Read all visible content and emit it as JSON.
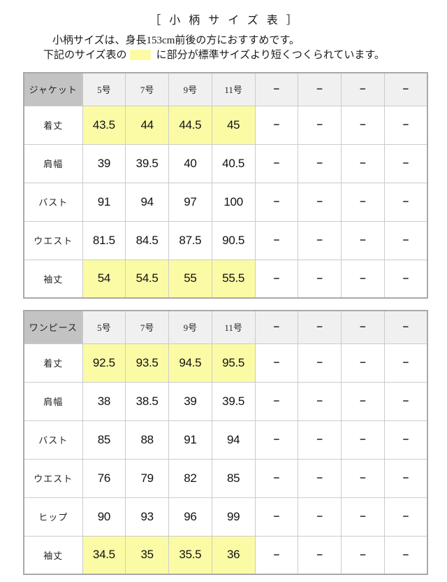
{
  "page": {
    "title": "［小柄サイズ表］",
    "description_line1": "小柄サイズは、身長153cm前後の方におすすめです。",
    "description_line2_prefix": "下記のサイズ表の",
    "description_line2_suffix": "に部分が標準サイズより短くつくられています。"
  },
  "colors": {
    "highlight": "#FBFBA6",
    "header_label_bg": "#C3C3C3",
    "header_size_bg": "#F0F0F0",
    "cell_border": "#CBCBCB",
    "outer_border": "#A9A9A9"
  },
  "dash": "−",
  "tables": [
    {
      "name": "ジャケット",
      "columns": [
        "5号",
        "7号",
        "9号",
        "11号",
        "−",
        "−",
        "−",
        "−"
      ],
      "rows": [
        {
          "label": "着丈",
          "highlight": true,
          "values": [
            "43.5",
            "44",
            "44.5",
            "45",
            "−",
            "−",
            "−",
            "−"
          ]
        },
        {
          "label": "肩幅",
          "highlight": false,
          "values": [
            "39",
            "39.5",
            "40",
            "40.5",
            "−",
            "−",
            "−",
            "−"
          ]
        },
        {
          "label": "バスト",
          "highlight": false,
          "values": [
            "91",
            "94",
            "97",
            "100",
            "−",
            "−",
            "−",
            "−"
          ]
        },
        {
          "label": "ウエスト",
          "highlight": false,
          "values": [
            "81.5",
            "84.5",
            "87.5",
            "90.5",
            "−",
            "−",
            "−",
            "−"
          ]
        },
        {
          "label": "袖丈",
          "highlight": true,
          "values": [
            "54",
            "54.5",
            "55",
            "55.5",
            "−",
            "−",
            "−",
            "−"
          ]
        }
      ]
    },
    {
      "name": "ワンピース",
      "columns": [
        "5号",
        "7号",
        "9号",
        "11号",
        "−",
        "−",
        "−",
        "−"
      ],
      "rows": [
        {
          "label": "着丈",
          "highlight": true,
          "values": [
            "92.5",
            "93.5",
            "94.5",
            "95.5",
            "−",
            "−",
            "−",
            "−"
          ]
        },
        {
          "label": "肩幅",
          "highlight": false,
          "values": [
            "38",
            "38.5",
            "39",
            "39.5",
            "−",
            "−",
            "−",
            "−"
          ]
        },
        {
          "label": "バスト",
          "highlight": false,
          "values": [
            "85",
            "88",
            "91",
            "94",
            "−",
            "−",
            "−",
            "−"
          ]
        },
        {
          "label": "ウエスト",
          "highlight": false,
          "values": [
            "76",
            "79",
            "82",
            "85",
            "−",
            "−",
            "−",
            "−"
          ]
        },
        {
          "label": "ヒップ",
          "highlight": false,
          "values": [
            "90",
            "93",
            "96",
            "99",
            "−",
            "−",
            "−",
            "−"
          ]
        },
        {
          "label": "袖丈",
          "highlight": true,
          "values": [
            "34.5",
            "35",
            "35.5",
            "36",
            "−",
            "−",
            "−",
            "−"
          ]
        }
      ]
    }
  ]
}
